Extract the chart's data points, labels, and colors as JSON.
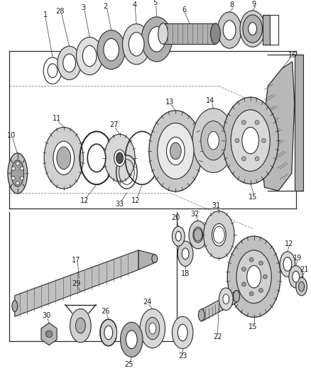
{
  "bg_color": "#ffffff",
  "line_color": "#2a2a2a",
  "label_color": "#1a1a1a",
  "gray_light": "#d8d8d8",
  "gray_mid": "#b0b0b0",
  "gray_dark": "#888888",
  "white": "#ffffff",
  "figsize": [
    4.38,
    5.33
  ],
  "dpi": 100
}
